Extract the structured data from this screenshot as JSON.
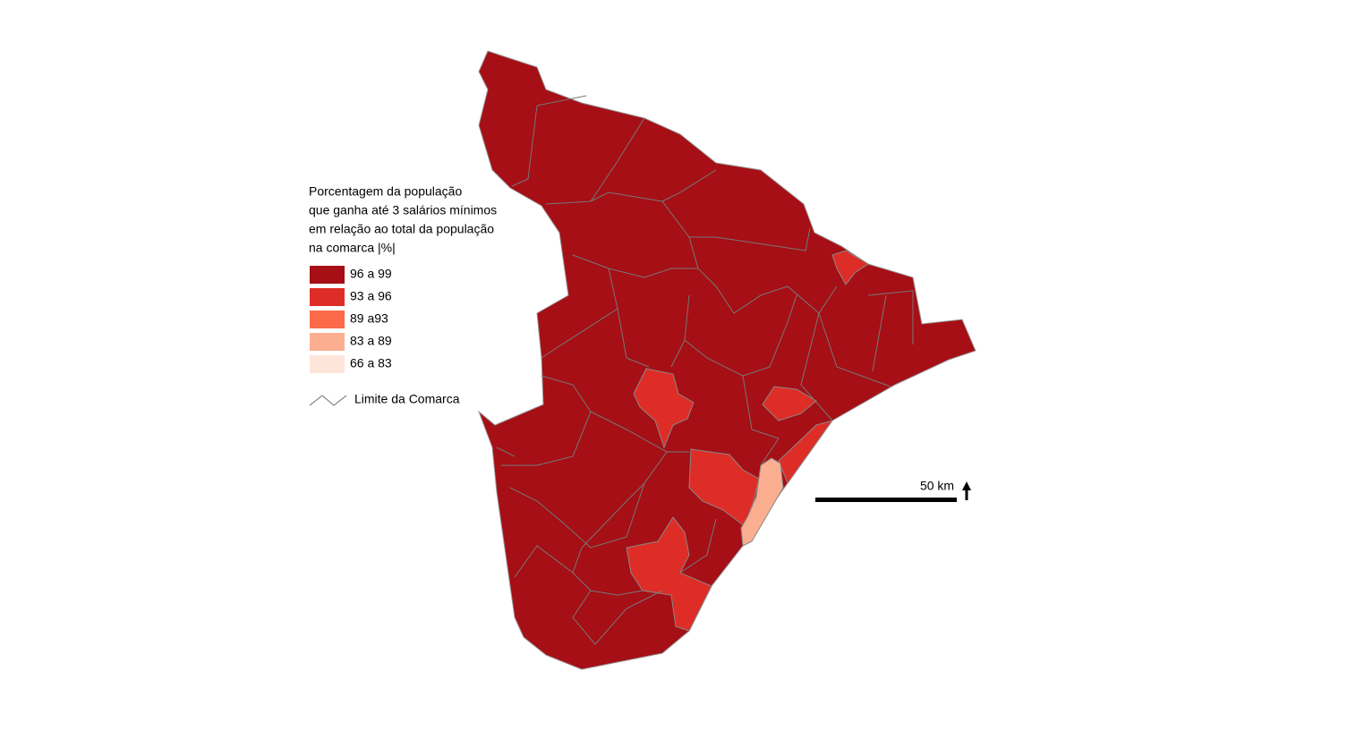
{
  "legend": {
    "title": [
      "Porcentagem da população",
      "que ganha até 3 salários mínimos",
      "em relação ao total da população",
      "na comarca |%|"
    ],
    "items": [
      {
        "label": "96 a 99",
        "color": "#a50f15"
      },
      {
        "label": "93 a 96",
        "color": "#de2d26"
      },
      {
        "label": " 89 a93",
        "color": "#fb6a4a"
      },
      {
        "label": "83 a 89",
        "color": "#fcae91"
      },
      {
        "label": "66 a 83",
        "color": "#fee5d9"
      }
    ],
    "boundary_label": "Limite da Comarca"
  },
  "scale": {
    "label": "50 km"
  }
}
